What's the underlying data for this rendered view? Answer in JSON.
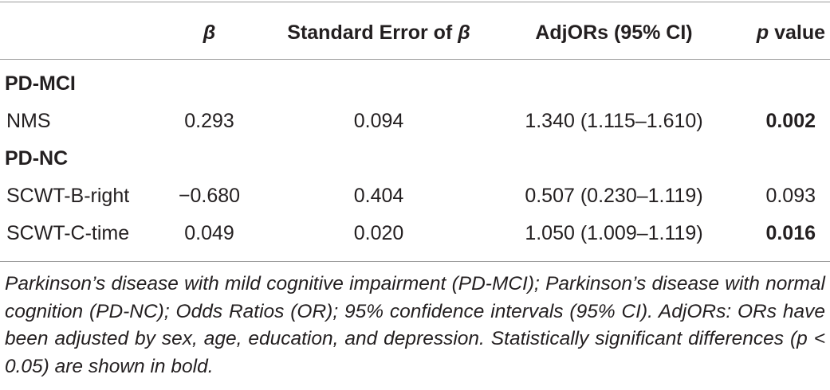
{
  "table": {
    "header": [
      [],
      [
        {
          "text": "β",
          "italic": true
        }
      ],
      [
        {
          "text": "Standard Error of ",
          "italic": false
        },
        {
          "text": "β",
          "italic": true
        }
      ],
      [
        {
          "text": "AdjORs (95% CI)",
          "italic": false
        }
      ],
      [
        {
          "text": "p",
          "italic": true
        },
        {
          "text": " value",
          "italic": false
        }
      ]
    ],
    "sections": [
      {
        "label": "PD-MCI",
        "rows": [
          {
            "cells": [
              "NMS",
              "0.293",
              "0.094",
              "1.340 (1.115–1.610)",
              "0.002"
            ],
            "p_bold": true
          }
        ]
      },
      {
        "label": "PD-NC",
        "rows": [
          {
            "cells": [
              "SCWT-B-right",
              "−0.680",
              "0.404",
              "0.507 (0.230–1.119)",
              "0.093"
            ],
            "p_bold": false
          },
          {
            "cells": [
              "SCWT-C-time",
              "0.049",
              "0.020",
              "1.050 (1.009–1.119)",
              "0.016"
            ],
            "p_bold": true
          }
        ]
      }
    ]
  },
  "footnote": "Parkinson’s disease with mild cognitive impairment (PD-MCI); Parkinson’s disease with normal cognition (PD-NC); Odds Ratios (OR); 95% confidence intervals (95% CI). AdjORs: ORs have been adjusted by sex, age, education, and depression. Statistically significant differences (p < 0.05) are shown in bold."
}
